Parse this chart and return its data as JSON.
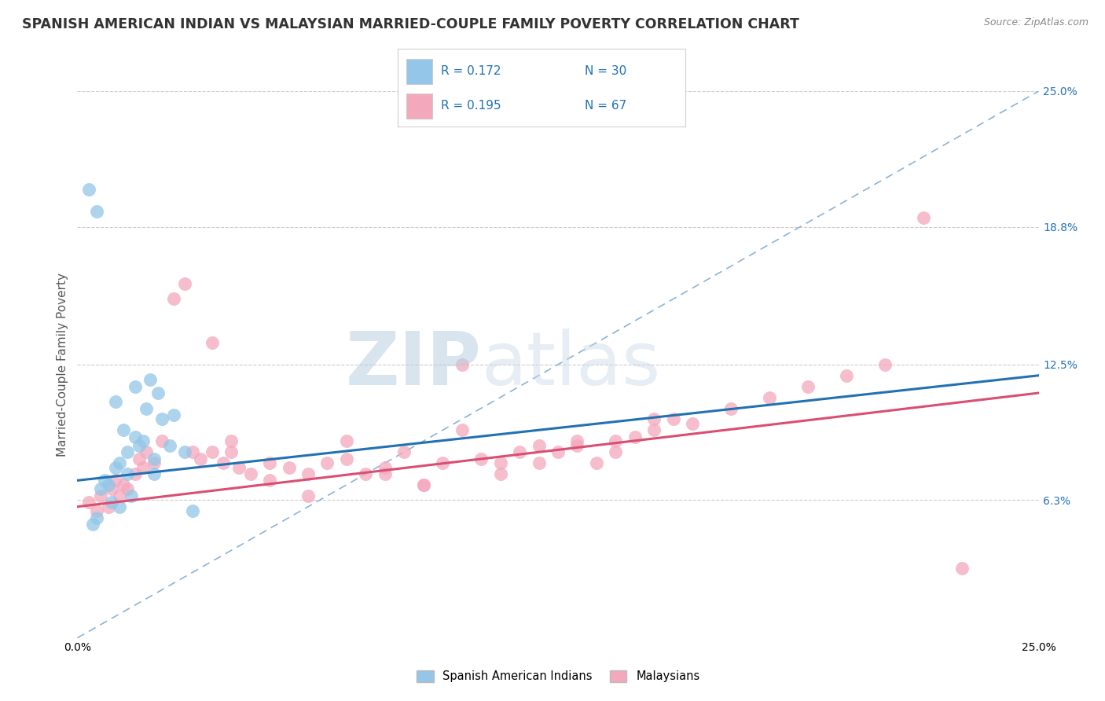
{
  "title": "SPANISH AMERICAN INDIAN VS MALAYSIAN MARRIED-COUPLE FAMILY POVERTY CORRELATION CHART",
  "source_text": "Source: ZipAtlas.com",
  "ylabel": "Married-Couple Family Poverty",
  "xlim": [
    0.0,
    25.0
  ],
  "ylim": [
    0.0,
    25.0
  ],
  "x_tick_labels": [
    "0.0%",
    "25.0%"
  ],
  "y_tick_right_vals": [
    6.3,
    12.5,
    18.8,
    25.0
  ],
  "y_tick_right_labels": [
    "6.3%",
    "12.5%",
    "18.8%",
    "25.0%"
  ],
  "legend_r1": "R = 0.172",
  "legend_n1": "N = 30",
  "legend_r2": "R = 0.195",
  "legend_n2": "N = 67",
  "blue_color": "#93c6e8",
  "pink_color": "#f4a8bc",
  "blue_line_color": "#2271b3",
  "pink_line_color": "#d94f72",
  "dashed_line_color": "#8ab4d8",
  "watermark_color": "#c8ddf0",
  "watermark_text": "ZIPatlas",
  "blue_line_x0": 0.0,
  "blue_line_y0": 7.2,
  "blue_line_x1": 25.0,
  "blue_line_y1": 12.0,
  "pink_line_x0": 0.0,
  "pink_line_y0": 6.0,
  "pink_line_x1": 25.0,
  "pink_line_y1": 11.2,
  "dashed_line_x0": 0.0,
  "dashed_line_y0": 0.0,
  "dashed_line_x1": 25.0,
  "dashed_line_y1": 25.0,
  "blue_scatter_x": [
    0.3,
    0.5,
    0.5,
    0.8,
    0.9,
    1.0,
    1.0,
    1.1,
    1.2,
    1.3,
    1.4,
    1.5,
    1.5,
    1.6,
    1.7,
    1.8,
    2.0,
    2.0,
    2.1,
    2.2,
    2.4,
    2.5,
    2.8,
    3.0,
    0.4,
    0.6,
    0.7,
    1.1,
    1.3,
    1.9
  ],
  "blue_scatter_y": [
    20.5,
    19.5,
    5.5,
    7.0,
    6.2,
    7.8,
    10.8,
    8.0,
    9.5,
    8.5,
    6.5,
    11.5,
    9.2,
    8.8,
    9.0,
    10.5,
    8.2,
    7.5,
    11.2,
    10.0,
    8.8,
    10.2,
    8.5,
    5.8,
    5.2,
    6.8,
    7.2,
    6.0,
    7.5,
    11.8
  ],
  "pink_scatter_x": [
    0.3,
    0.5,
    0.6,
    0.8,
    0.9,
    1.0,
    1.1,
    1.2,
    1.3,
    1.5,
    1.6,
    1.7,
    1.8,
    2.0,
    2.2,
    2.5,
    2.8,
    3.0,
    3.2,
    3.5,
    3.8,
    4.0,
    4.2,
    4.5,
    5.0,
    5.5,
    6.0,
    6.5,
    7.0,
    7.5,
    8.0,
    8.5,
    9.0,
    9.5,
    10.0,
    10.5,
    11.0,
    11.5,
    12.0,
    12.5,
    13.0,
    13.5,
    14.0,
    14.5,
    15.0,
    15.5,
    16.0,
    17.0,
    18.0,
    19.0,
    20.0,
    21.0,
    22.0,
    3.5,
    4.0,
    5.0,
    7.0,
    9.0,
    11.0,
    13.0,
    15.0,
    6.0,
    8.0,
    14.0,
    10.0,
    12.0,
    23.0
  ],
  "pink_scatter_y": [
    6.2,
    5.8,
    6.5,
    6.0,
    6.8,
    7.2,
    6.5,
    7.0,
    6.8,
    7.5,
    8.2,
    7.8,
    8.5,
    8.0,
    9.0,
    15.5,
    16.2,
    8.5,
    8.2,
    13.5,
    8.0,
    8.5,
    7.8,
    7.5,
    7.2,
    7.8,
    7.5,
    8.0,
    8.2,
    7.5,
    7.8,
    8.5,
    7.0,
    8.0,
    9.5,
    8.2,
    7.5,
    8.5,
    8.0,
    8.5,
    8.8,
    8.0,
    9.0,
    9.2,
    9.5,
    10.0,
    9.8,
    10.5,
    11.0,
    11.5,
    12.0,
    12.5,
    19.2,
    8.5,
    9.0,
    8.0,
    9.0,
    7.0,
    8.0,
    9.0,
    10.0,
    6.5,
    7.5,
    8.5,
    12.5,
    8.8,
    3.2
  ],
  "background_color": "#ffffff",
  "grid_color": "#cccccc",
  "title_fontsize": 12.5,
  "axis_label_fontsize": 11,
  "tick_fontsize": 10
}
